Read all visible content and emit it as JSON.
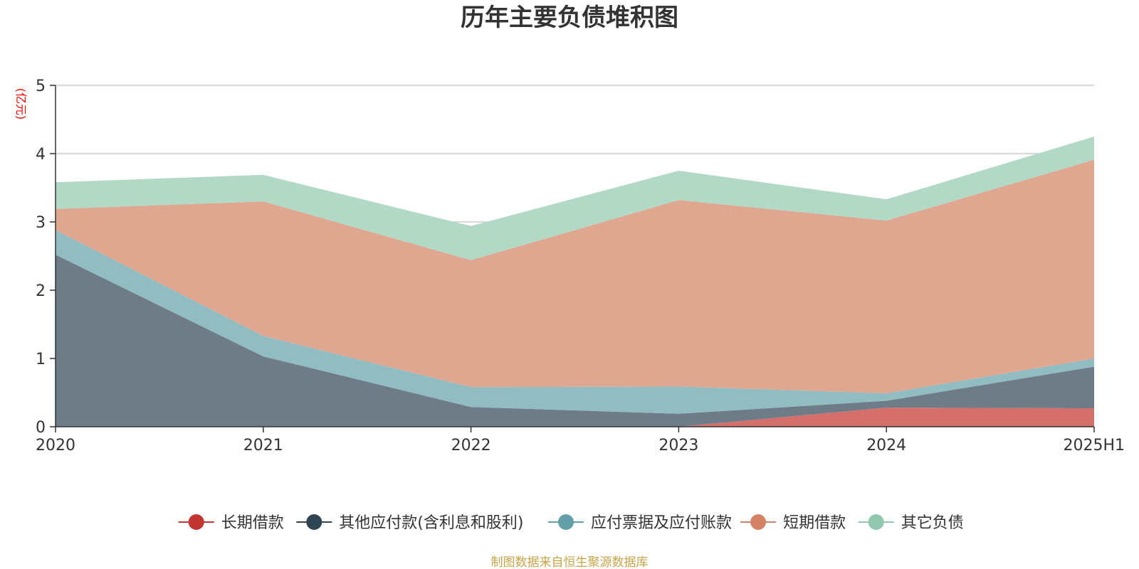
{
  "chart_data": {
    "type": "area",
    "stacked": true,
    "title": "历年主要负债堆积图",
    "ylabel": "(亿元)",
    "xlabel": "",
    "categories": [
      "2020",
      "2021",
      "2022",
      "2023",
      "2024",
      "2025H1"
    ],
    "ylim": [
      0,
      5
    ],
    "yticks": [
      "0",
      "1",
      "2",
      "3",
      "4",
      "5"
    ],
    "grid": true,
    "legend_position": "bottom",
    "series": [
      {
        "name": "长期借款",
        "color": "#c23531",
        "fill": "#d46f6c",
        "values": [
          0,
          0,
          0,
          0,
          0.28,
          0.27
        ]
      },
      {
        "name": "其他应付款(含利息和股利)",
        "color": "#2f4554",
        "fill": "#6d7c87",
        "values": [
          2.52,
          1.03,
          0.29,
          0.19,
          0.1,
          0.61
        ]
      },
      {
        "name": "应付票据及应付账款",
        "color": "#61a0a8",
        "fill": "#90bcc2",
        "values": [
          0.36,
          0.3,
          0.29,
          0.4,
          0.11,
          0.12
        ]
      },
      {
        "name": "短期借款",
        "color": "#d48265",
        "fill": "#dfa690",
        "values": [
          0.31,
          1.97,
          1.86,
          2.73,
          2.53,
          2.91
        ]
      },
      {
        "name": "其它负债",
        "color": "#91c7ae",
        "fill": "#b2d8c6",
        "values": [
          0.39,
          0.39,
          0.5,
          0.43,
          0.31,
          0.34
        ]
      }
    ]
  },
  "source_note": "制图数据来自恒生聚源数据库"
}
